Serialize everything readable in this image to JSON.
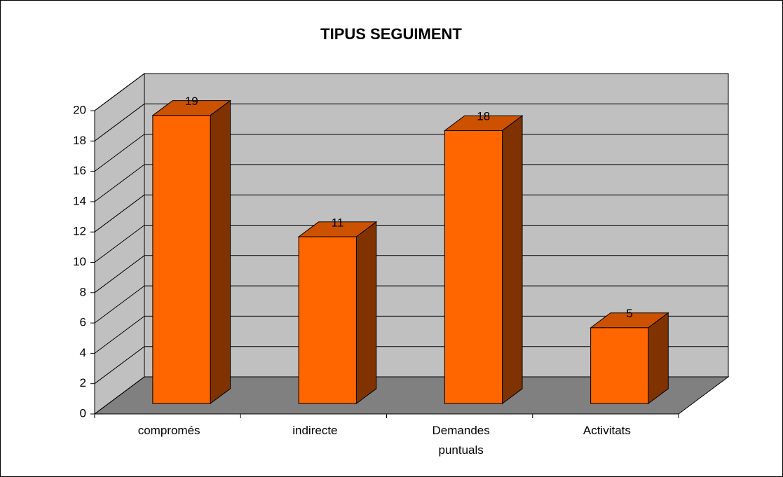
{
  "chart_data": {
    "type": "bar3d",
    "title": "TIPUS SEGUIMENT",
    "categories": [
      "compromés",
      "indirecte",
      "Demandes puntuals",
      "Activitats"
    ],
    "values": [
      19,
      11,
      18,
      5
    ],
    "color": "#ff6600",
    "side_color": "#803300",
    "top_color": "#cc5200",
    "ylim": [
      0,
      20
    ],
    "yticks": [
      0,
      2,
      4,
      6,
      8,
      10,
      12,
      14,
      16,
      18,
      20
    ],
    "grid": true
  }
}
